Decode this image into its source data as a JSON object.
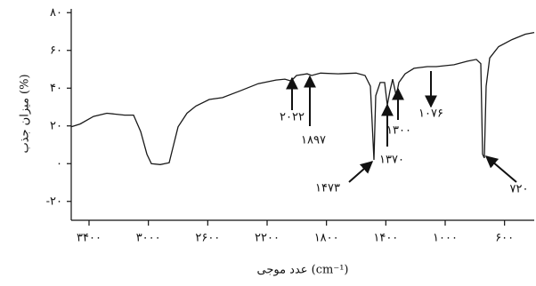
{
  "chart_data": {
    "type": "line",
    "x_label": "عدد موجی (cm⁻¹)",
    "y_label": "میزان جذب (%)",
    "xlim": [
      3520,
      400
    ],
    "ylim": [
      -30,
      82
    ],
    "xticks": [
      {
        "value": 3400,
        "label": "۳۴۰۰"
      },
      {
        "value": 3000,
        "label": "۳۰۰۰"
      },
      {
        "value": 2600,
        "label": "۲۶۰۰"
      },
      {
        "value": 2200,
        "label": "۲۲۰۰"
      },
      {
        "value": 1800,
        "label": "۱۸۰۰"
      },
      {
        "value": 1400,
        "label": "۱۴۰۰"
      },
      {
        "value": 1000,
        "label": "۱۰۰۰"
      },
      {
        "value": 600,
        "label": "۶۰۰"
      }
    ],
    "yticks": [
      {
        "value": -20,
        "label": "-۲۰"
      },
      {
        "value": 0,
        "label": "۰"
      },
      {
        "value": 20,
        "label": "۲۰"
      },
      {
        "value": 40,
        "label": "۴۰"
      },
      {
        "value": 60,
        "label": "۶۰"
      },
      {
        "value": 80,
        "label": "۸۰"
      }
    ],
    "x": [
      3520,
      3460,
      3370,
      3280,
      3160,
      3100,
      3052,
      3010,
      2980,
      2920,
      2860,
      2830,
      2800,
      2740,
      2680,
      2590,
      2500,
      2380,
      2260,
      2140,
      2080,
      2038,
      2002,
      1930,
      1900,
      1840,
      1720,
      1600,
      1540,
      1504,
      1480,
      1468,
      1438,
      1408,
      1390,
      1372,
      1354,
      1330,
      1312,
      1270,
      1210,
      1120,
      1060,
      940,
      850,
      790,
      760,
      748,
      736,
      724,
      700,
      640,
      550,
      460,
      400
    ],
    "series": [
      {
        "color": "#1a1a1a",
        "values": [
          19.5,
          21,
          25,
          26.7,
          25.7,
          25.7,
          17,
          5,
          0,
          -0.5,
          0.5,
          10,
          19.5,
          26.7,
          30.5,
          34,
          35,
          38.6,
          42.4,
          44.3,
          44.8,
          43.8,
          46.7,
          47.6,
          46.7,
          48,
          47.6,
          48,
          46.7,
          41,
          2,
          36,
          43,
          43,
          31,
          38.6,
          44.8,
          36,
          43,
          47.6,
          50.5,
          51.4,
          51.4,
          52.4,
          54.3,
          55.2,
          53,
          5,
          3,
          41,
          56,
          62,
          65.7,
          68.6,
          69.5
        ]
      }
    ],
    "annotations": [
      "۲۰۲۲",
      "۱۸۹۷",
      "۱۴۷۳",
      "۱۳۷۰",
      "۱۳۰۰",
      "۱۰۷۶",
      "۷۲۰"
    ]
  }
}
